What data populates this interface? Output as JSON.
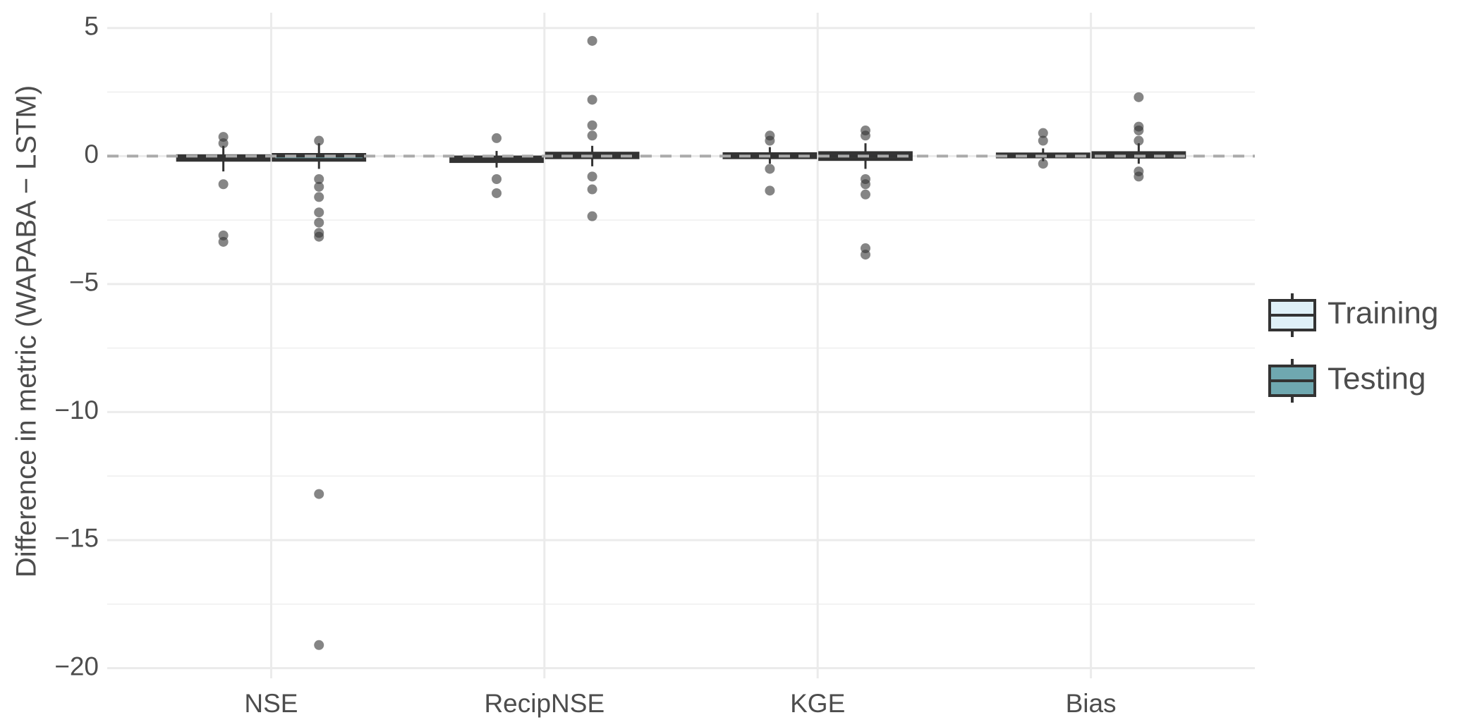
{
  "chart_data": {
    "type": "boxplot",
    "y_label": "Difference in metric (WAPABA − LSTM)",
    "categories": [
      "NSE",
      "RecipNSE",
      "KGE",
      "Bias"
    ],
    "ylim": [
      -20.4,
      5.6
    ],
    "yticks": [
      {
        "value": -20,
        "label": "−20"
      },
      {
        "value": -15,
        "label": "−15"
      },
      {
        "value": -10,
        "label": "−10"
      },
      {
        "value": -5,
        "label": "−5"
      },
      0,
      5
    ],
    "grid": true,
    "hline": 0,
    "legend_position": "right",
    "series": [
      {
        "name": "Training",
        "color": "#dff0f7",
        "boxes": [
          {
            "whislo": -0.6,
            "q1": -0.15,
            "median": -0.05,
            "q3": 0.0,
            "whishi": 0.4,
            "outliers": [
              0.75,
              0.5,
              -1.1,
              -3.1,
              -3.35
            ]
          },
          {
            "whislo": -0.45,
            "q1": -0.2,
            "median": -0.1,
            "q3": -0.05,
            "whishi": 0.2,
            "outliers": [
              0.7,
              -0.9,
              -1.45
            ]
          },
          {
            "whislo": -0.3,
            "q1": -0.05,
            "median": 0.02,
            "q3": 0.08,
            "whishi": 0.35,
            "outliers": [
              0.8,
              0.6,
              -0.5,
              -1.35
            ]
          },
          {
            "whislo": -0.2,
            "q1": -0.02,
            "median": 0.02,
            "q3": 0.07,
            "whishi": 0.3,
            "outliers": [
              0.9,
              0.6,
              -0.3
            ]
          }
        ]
      },
      {
        "name": "Testing",
        "color": "#6fa8b0",
        "boxes": [
          {
            "whislo": -0.5,
            "q1": -0.15,
            "median": 0.0,
            "q3": 0.05,
            "whishi": 0.5,
            "outliers": [
              0.6,
              -0.9,
              -1.2,
              -1.6,
              -2.2,
              -2.6,
              -3.0,
              -3.15,
              -13.2,
              -19.1
            ]
          },
          {
            "whislo": -0.4,
            "q1": -0.05,
            "median": 0.02,
            "q3": 0.1,
            "whishi": 0.4,
            "outliers": [
              0.8,
              1.2,
              2.2,
              4.5,
              -0.8,
              -1.3,
              -2.35
            ]
          },
          {
            "whislo": -0.5,
            "q1": -0.12,
            "median": 0.0,
            "q3": 0.12,
            "whishi": 0.5,
            "outliers": [
              1.0,
              0.8,
              -0.9,
              -1.1,
              -1.5,
              -3.6,
              -3.85
            ]
          },
          {
            "whislo": -0.3,
            "q1": -0.03,
            "median": 0.05,
            "q3": 0.12,
            "whishi": 0.5,
            "outliers": [
              0.6,
              1.0,
              1.15,
              2.3,
              -0.6,
              -0.8
            ]
          }
        ]
      }
    ]
  }
}
